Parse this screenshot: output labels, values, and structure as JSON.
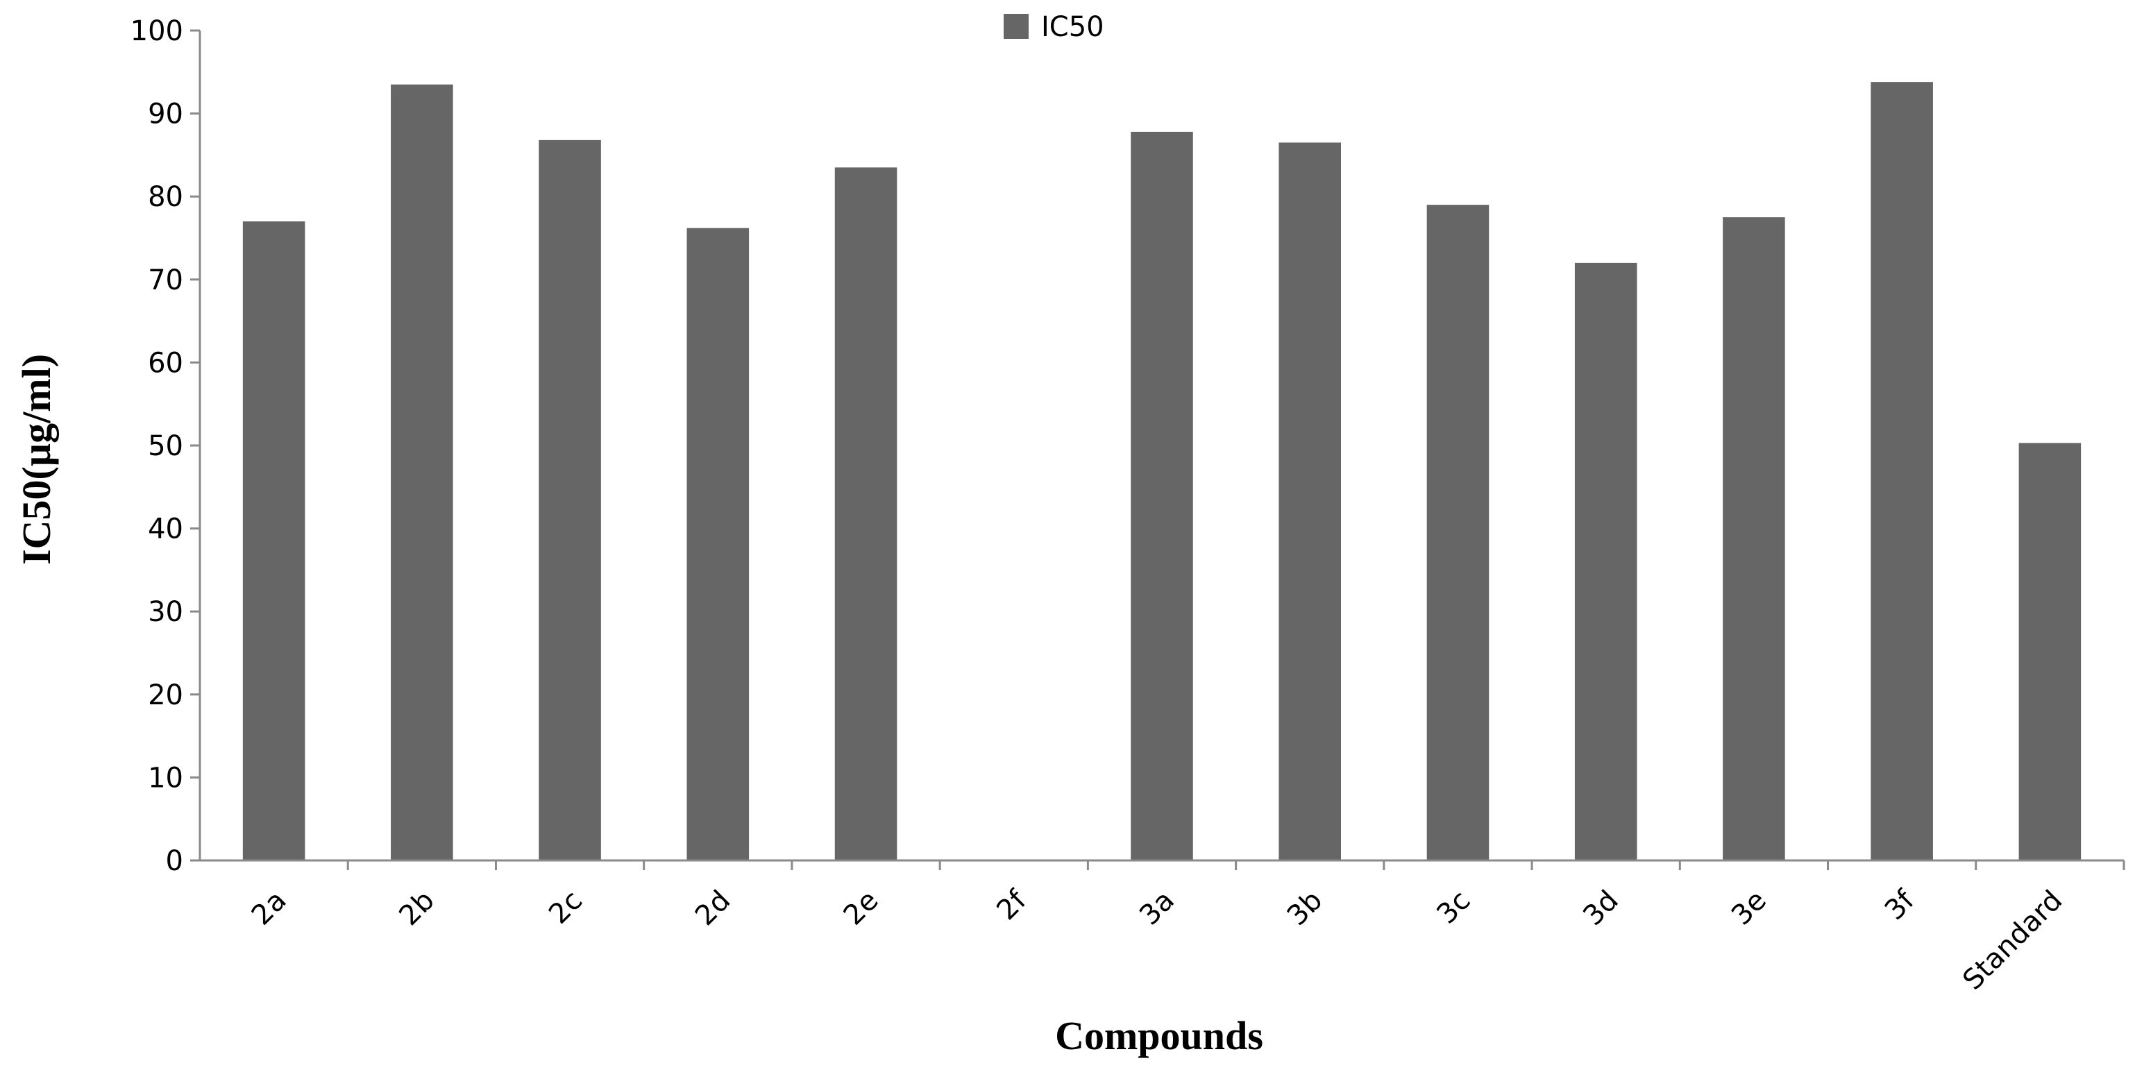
{
  "chart_data": {
    "type": "bar",
    "categories": [
      "2a",
      "2b",
      "2c",
      "2d",
      "2e",
      "2f",
      "3a",
      "3b",
      "3c",
      "3d",
      "3e",
      "3f",
      "Standard"
    ],
    "series": [
      {
        "name": "IC50",
        "values": [
          77,
          93.5,
          86.8,
          76.2,
          83.5,
          0,
          87.8,
          86.5,
          79,
          72,
          77.5,
          93.8,
          50.3
        ]
      }
    ],
    "xlabel": "Compounds",
    "ylabel": "IC50(µg/ml)",
    "ylim": [
      0,
      100
    ],
    "yticks": [
      0,
      10,
      20,
      30,
      40,
      50,
      60,
      70,
      80,
      90,
      100
    ],
    "legend_position": "top-center",
    "grid": false,
    "bar_color": "#666666"
  }
}
